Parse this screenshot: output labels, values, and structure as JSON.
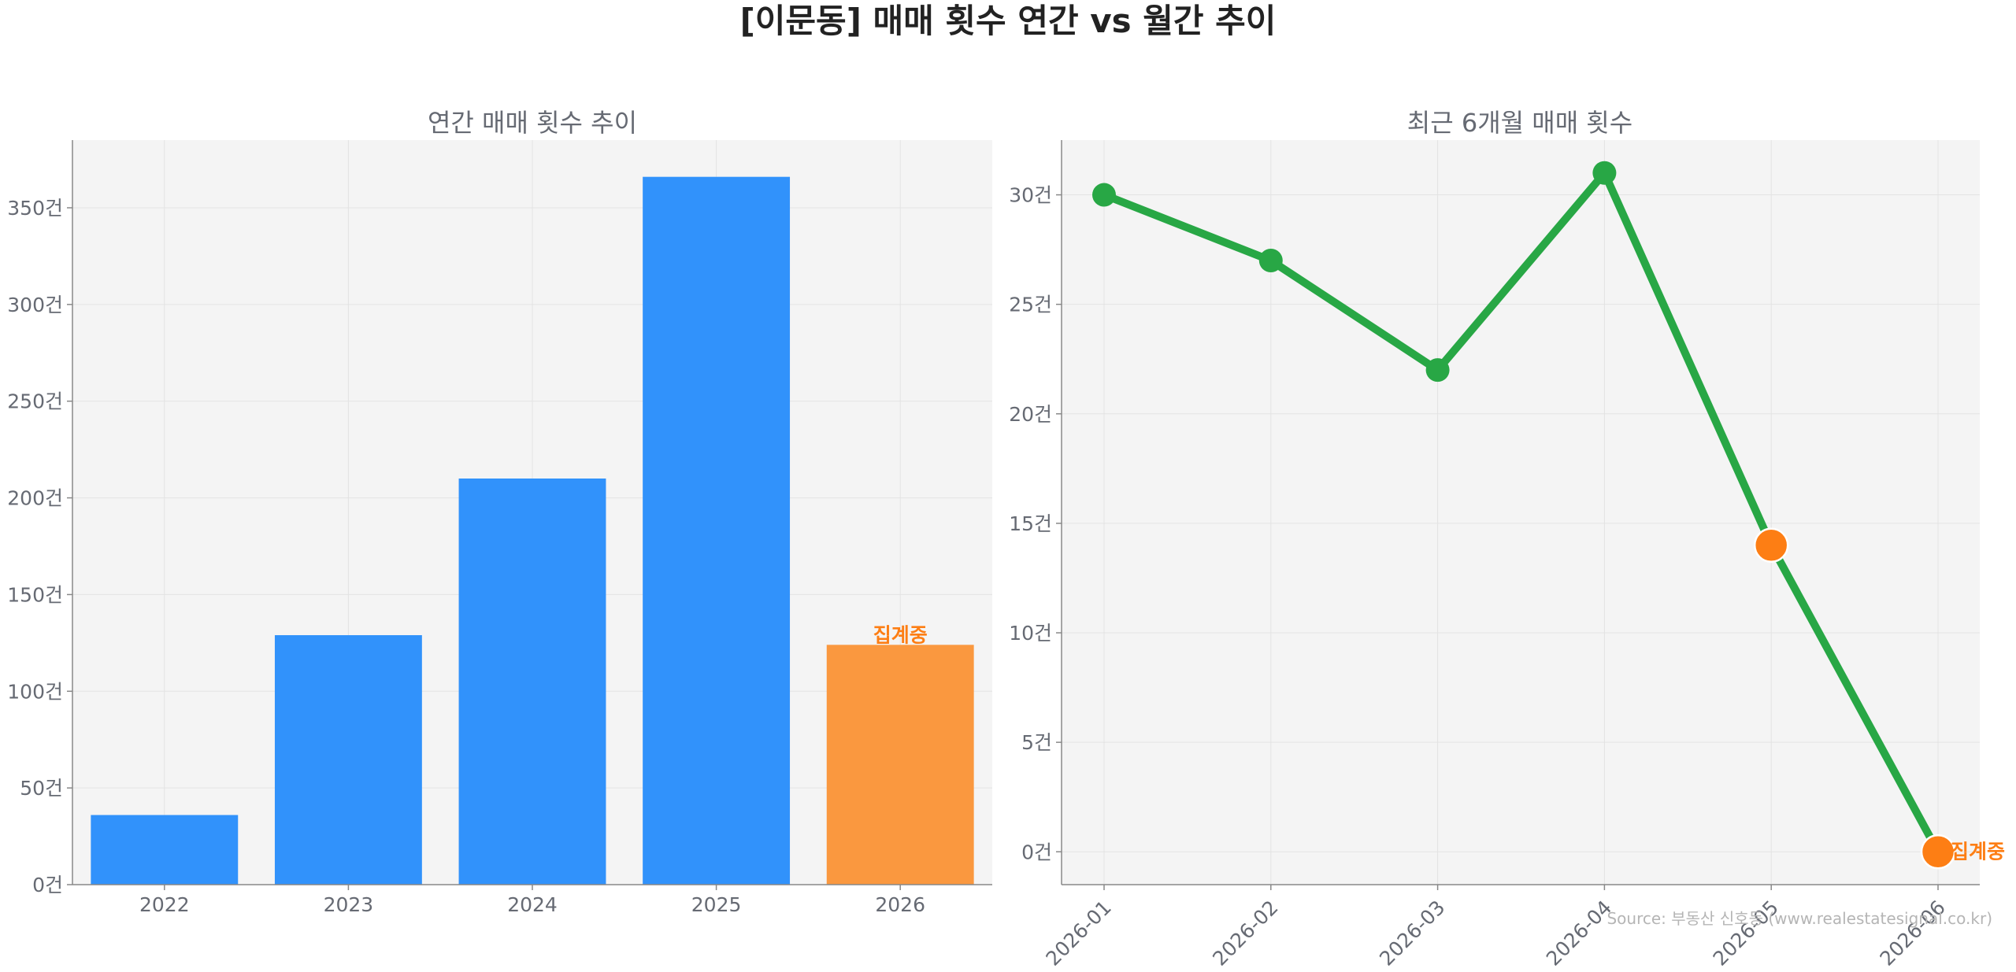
{
  "figure": {
    "title": "[이문동] 매매 횟수 연간 vs 월간 추이",
    "source": "Source: 부동산 신호등 (www.realestatesignal.co.kr)"
  },
  "colors": {
    "bar": "#3192fb",
    "bar_pending": "#fa983f",
    "line": "#28a745",
    "marker_pending": "#fd7e14",
    "pending_text": "#fd7e14",
    "axes_bg": "#f4f4f4",
    "grid": "#e3e3e3",
    "spine": "#888888",
    "text": "#666a73"
  },
  "chart_data": [
    {
      "type": "bar",
      "title": "연간 매매 횟수 추이",
      "categories": [
        "2022",
        "2023",
        "2024",
        "2025",
        "2026"
      ],
      "values": [
        36,
        129,
        210,
        366,
        124
      ],
      "pending_index": 4,
      "pending_label": "집계중",
      "ylim": [
        0,
        385
      ],
      "yticks": [
        0,
        50,
        100,
        150,
        200,
        250,
        300,
        350
      ],
      "ytick_suffix": "건",
      "grid": true
    },
    {
      "type": "line",
      "title": "최근 6개월 매매 횟수",
      "x": [
        "2026-01",
        "2026-02",
        "2026-03",
        "2026-04",
        "2026-05",
        "2026-06"
      ],
      "values": [
        30,
        27,
        22,
        31,
        14,
        0
      ],
      "pending_indices": [
        4,
        5
      ],
      "pending_label": "집계중",
      "ylim": [
        -1.5,
        32.5
      ],
      "yticks": [
        0,
        5,
        10,
        15,
        20,
        25,
        30
      ],
      "ytick_suffix": "건",
      "grid": true
    }
  ]
}
